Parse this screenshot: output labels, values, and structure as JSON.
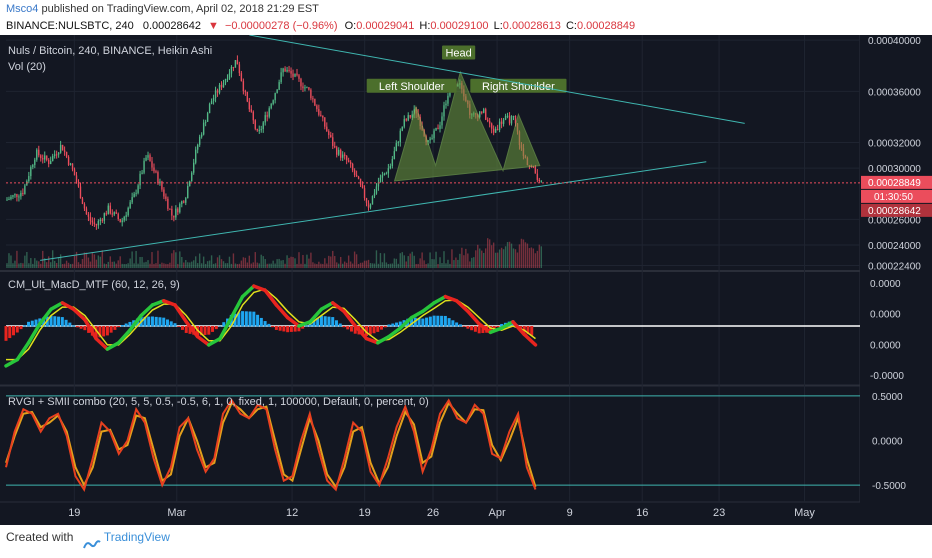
{
  "header": {
    "user": "Msco4",
    "published_text": "published on TradingView.com, April 02, 2018 21:29 EST",
    "symbol": "BINANCE:NULSBTC, 240",
    "last": "0.00028642",
    "change_arrow": "▼",
    "change": "−0.00000278 (−0.96%)",
    "ohlc": [
      {
        "label": "O:",
        "value": "0.00029041"
      },
      {
        "label": "H:",
        "value": "0.00029100"
      },
      {
        "label": "L:",
        "value": "0.00028613"
      },
      {
        "label": "C:",
        "value": "0.00028849"
      }
    ]
  },
  "footer": {
    "created_with": "Created with",
    "brand": "TradingView"
  },
  "colors": {
    "background": "#131722",
    "up": "#53b987",
    "down": "#eb4d5c",
    "trendline": "#3fb6b0",
    "pattern_fill": "#6d9a3f",
    "label_bg": "#4c6f2c",
    "macd_line": "#27c63b",
    "macd_down": "#e8241f",
    "signal": "#e0e01c",
    "hist_up": "#1ea6f0",
    "hist_down": "#e8241f",
    "rvgi": "#e8401f",
    "rvgi_signal": "#e3a01c",
    "last_price": "#eb4d5c"
  },
  "chart_data": [
    {
      "type": "candlestick",
      "title": "Nuls / Bitcoin, 240, BINANCE, Heikin Ashi",
      "volume_label": "Vol (20)",
      "ylim": [
        0.000222,
        0.000404
      ],
      "y_ticks": [
        "0.00040000",
        "0.00036000",
        "0.00032000",
        "0.00030000",
        "0.00026000",
        "0.00024000",
        "0.00022400"
      ],
      "y_tick_values": [
        0.0004,
        0.00036,
        0.00032,
        0.0003,
        0.00026,
        0.00024,
        0.000224
      ],
      "price_labels": [
        {
          "value": 0.00028849,
          "text": "0.00028849"
        },
        {
          "value": 0.00028642,
          "text": "0.00028642"
        }
      ],
      "countdown": "01:30:50",
      "x_ticks": [
        "19",
        "Mar",
        "12",
        "19",
        "26",
        "Apr",
        "9",
        "16",
        "23",
        "May"
      ],
      "x_tick_pos": [
        0.08,
        0.2,
        0.335,
        0.42,
        0.5,
        0.575,
        0.66,
        0.745,
        0.835,
        0.935
      ],
      "price_path": [
        [
          0.0,
          0.000275
        ],
        [
          0.02,
          0.000282
        ],
        [
          0.035,
          0.000312
        ],
        [
          0.05,
          0.000305
        ],
        [
          0.065,
          0.000318
        ],
        [
          0.08,
          0.000295
        ],
        [
          0.095,
          0.000262
        ],
        [
          0.105,
          0.000255
        ],
        [
          0.12,
          0.000268
        ],
        [
          0.135,
          0.000258
        ],
        [
          0.15,
          0.000278
        ],
        [
          0.165,
          0.00031
        ],
        [
          0.18,
          0.000288
        ],
        [
          0.195,
          0.000262
        ],
        [
          0.21,
          0.000278
        ],
        [
          0.225,
          0.00032
        ],
        [
          0.24,
          0.000352
        ],
        [
          0.255,
          0.000368
        ],
        [
          0.27,
          0.000385
        ],
        [
          0.282,
          0.000352
        ],
        [
          0.295,
          0.000325
        ],
        [
          0.31,
          0.00035
        ],
        [
          0.325,
          0.000378
        ],
        [
          0.34,
          0.00037
        ],
        [
          0.355,
          0.00036
        ],
        [
          0.37,
          0.000338
        ],
        [
          0.385,
          0.000315
        ],
        [
          0.4,
          0.000305
        ],
        [
          0.412,
          0.00029
        ],
        [
          0.425,
          0.00027
        ],
        [
          0.435,
          0.000288
        ],
        [
          0.45,
          0.000302
        ],
        [
          0.465,
          0.000335
        ],
        [
          0.48,
          0.000345
        ],
        [
          0.495,
          0.000318
        ],
        [
          0.508,
          0.000335
        ],
        [
          0.52,
          0.000365
        ],
        [
          0.532,
          0.000368
        ],
        [
          0.545,
          0.00034
        ],
        [
          0.558,
          0.000345
        ],
        [
          0.57,
          0.000328
        ],
        [
          0.582,
          0.000338
        ],
        [
          0.595,
          0.000338
        ],
        [
          0.605,
          0.00031
        ],
        [
          0.618,
          0.000298
        ],
        [
          0.628,
          0.000288
        ]
      ],
      "pattern": {
        "labels": [
          "Left Shoulder",
          "Head",
          "Right Shoulder"
        ],
        "points": [
          [
            0.455,
            0.00029
          ],
          [
            0.48,
            0.000348
          ],
          [
            0.503,
            0.000302
          ],
          [
            0.532,
            0.000375
          ],
          [
            0.555,
            0.000338
          ],
          [
            0.582,
            0.000298
          ],
          [
            0.6,
            0.000342
          ],
          [
            0.625,
            0.000302
          ]
        ]
      },
      "trendlines": [
        {
          "from": [
            0.285,
            0.000404
          ],
          "to": [
            0.865,
            0.000335
          ]
        },
        {
          "from": [
            0.04,
            0.000228
          ],
          "to": [
            0.82,
            0.000305
          ]
        }
      ]
    },
    {
      "type": "line",
      "title": "CM_Ult_MacD_MTF (60, 12, 26, 9)",
      "y_ticks": [
        "0.0000",
        "0.0000",
        "0.0000",
        "-0.0000"
      ],
      "y_tick_pos": [
        0.08,
        0.36,
        0.64,
        0.92
      ],
      "series": [
        {
          "values": [
            -0.95,
            -0.8,
            -0.4,
            0.05,
            0.4,
            0.55,
            0.4,
            0.15,
            -0.3,
            -0.55,
            -0.4,
            -0.1,
            0.25,
            0.5,
            0.6,
            0.5,
            0.1,
            -0.25,
            -0.45,
            -0.3,
            0.2,
            0.7,
            0.95,
            0.85,
            0.5,
            0.2,
            0.0,
            0.1,
            0.4,
            0.55,
            0.35,
            0.0,
            -0.3,
            -0.4,
            -0.25,
            -0.05,
            0.2,
            0.35,
            0.55,
            0.7,
            0.6,
            0.35,
            0.05,
            -0.15,
            -0.05,
            0.1,
            -0.2,
            -0.45
          ]
        },
        {
          "values": [
            -0.8,
            -0.8,
            -0.55,
            -0.1,
            0.25,
            0.45,
            0.45,
            0.25,
            -0.1,
            -0.45,
            -0.45,
            -0.2,
            0.1,
            0.38,
            0.52,
            0.52,
            0.25,
            -0.1,
            -0.35,
            -0.35,
            0.0,
            0.5,
            0.8,
            0.88,
            0.65,
            0.35,
            0.1,
            0.05,
            0.25,
            0.45,
            0.42,
            0.15,
            -0.15,
            -0.35,
            -0.32,
            -0.15,
            0.05,
            0.25,
            0.42,
            0.6,
            0.62,
            0.45,
            0.2,
            -0.05,
            -0.1,
            0.0,
            -0.1,
            -0.3
          ]
        }
      ]
    },
    {
      "type": "line",
      "title": "RVGI + SMII combo (20, 5, 5, 0.5, -0.5, 6, 1, 0, fixed, 1, 100000, Default, 0, percent, 0)",
      "y_ticks": [
        "0.5000",
        "0.0000",
        "-0.5000"
      ],
      "y_tick_values": [
        0.5,
        0.0,
        -0.5
      ],
      "ylim": [
        -0.6,
        0.6
      ],
      "series": [
        {
          "values": [
            -0.3,
            0.1,
            0.35,
            0.3,
            0.1,
            0.25,
            0.3,
            0.05,
            -0.4,
            -0.55,
            -0.2,
            0.2,
            0.1,
            -0.15,
            0.0,
            0.35,
            0.2,
            -0.2,
            -0.5,
            -0.3,
            0.15,
            0.25,
            -0.1,
            -0.35,
            -0.2,
            0.3,
            0.45,
            0.3,
            0.25,
            0.4,
            0.35,
            -0.1,
            -0.45,
            -0.4,
            0.0,
            0.3,
            -0.1,
            -0.45,
            -0.55,
            -0.2,
            0.2,
            0.1,
            -0.35,
            -0.5,
            -0.2,
            0.15,
            0.38,
            0.1,
            -0.35,
            -0.1,
            0.3,
            0.45,
            0.25,
            0.2,
            0.4,
            0.3,
            -0.15,
            -0.2,
            0.1,
            0.3,
            -0.3,
            -0.55
          ]
        },
        {
          "values": [
            -0.25,
            0.05,
            0.3,
            0.32,
            0.15,
            0.2,
            0.28,
            0.1,
            -0.3,
            -0.5,
            -0.3,
            0.1,
            0.12,
            -0.1,
            -0.05,
            0.28,
            0.25,
            -0.1,
            -0.45,
            -0.38,
            0.05,
            0.25,
            0.0,
            -0.3,
            -0.25,
            0.2,
            0.42,
            0.35,
            0.25,
            0.35,
            0.38,
            0.0,
            -0.38,
            -0.45,
            -0.1,
            0.25,
            0.0,
            -0.38,
            -0.52,
            -0.3,
            0.1,
            0.15,
            -0.25,
            -0.48,
            -0.3,
            0.05,
            0.32,
            0.18,
            -0.25,
            -0.18,
            0.2,
            0.42,
            0.3,
            0.2,
            0.35,
            0.34,
            -0.05,
            -0.22,
            0.0,
            0.25,
            -0.2,
            -0.52
          ]
        }
      ]
    }
  ]
}
